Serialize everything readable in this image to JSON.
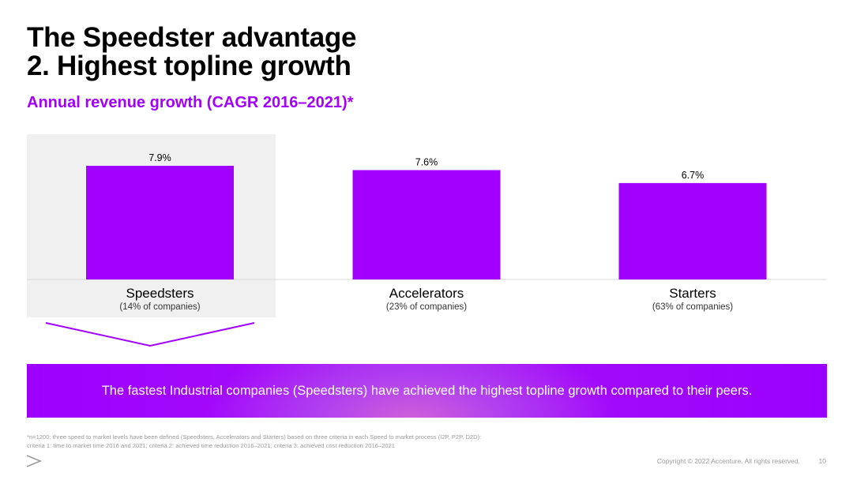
{
  "title": {
    "line1": "The Speedster advantage",
    "line2": "2. Highest topline growth"
  },
  "subtitle": "Annual revenue growth (CAGR 2016–2021)*",
  "chart_data": {
    "type": "bar",
    "title": "Annual revenue growth (CAGR 2016–2021)*",
    "categories": [
      "Speedsters",
      "Accelerators",
      "Starters"
    ],
    "category_notes": [
      "(14% of companies)",
      "(23% of companies)",
      "(63% of companies)"
    ],
    "values": [
      7.9,
      7.6,
      6.7
    ],
    "value_labels": [
      "7.9%",
      "7.6%",
      "6.7%"
    ],
    "unit": "%",
    "xlabel": "",
    "ylabel": "",
    "ylim": [
      0,
      7.9
    ],
    "grid": false,
    "highlighted_category": "Speedsters",
    "colors": {
      "bar": "#a100ff",
      "highlight_bg": "#f0f0f0",
      "baseline": "#d9d9d9"
    }
  },
  "banner": {
    "text": "The fastest Industrial companies (Speedsters) have achieved the highest topline growth compared to their peers."
  },
  "footnote": {
    "line1": "*n=1200; three speed to market levels have been defined (Speedsters, Accelerators and Starters) based on three criteria in each Speed to market process (I2P, P2P, D2D):",
    "line2": "criteria 1: time to market time 2016 and 2021; criteria 2: achieved time reduction 2016–2021; criteria 3: achieved cost reduction 2016–2021"
  },
  "footer": {
    "logo_icon": "accenture-chevron-icon",
    "copyright": "Copyright © 2022 Accenture. All rights reserved.",
    "page_number": "10"
  },
  "colors": {
    "accent": "#a100ff",
    "text": "#000000",
    "muted": "#9a9a9a"
  }
}
